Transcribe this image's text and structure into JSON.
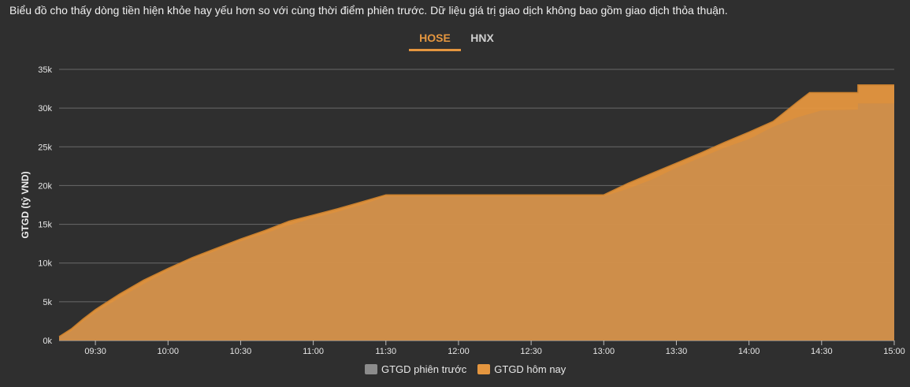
{
  "description": "Biểu đồ cho thấy dòng tiền hiện khỏe hay yếu hơn so với cùng thời điểm phiên trước. Dữ liệu giá trị giao dịch không bao gồm giao dịch thỏa thuận.",
  "tabs": [
    {
      "label": "HOSE",
      "active": true
    },
    {
      "label": "HNX",
      "active": false
    }
  ],
  "colors": {
    "background": "#2f2f2f",
    "previous": "#8c8c8c",
    "today": "#e5963f",
    "active_tab": "#e5963f"
  },
  "chart_data": {
    "type": "area",
    "ylabel": "GTGD (tỷ VND)",
    "ylim": [
      0,
      35000
    ],
    "yticks": [
      0,
      5000,
      10000,
      15000,
      20000,
      25000,
      30000,
      35000
    ],
    "ytick_labels": [
      "0k",
      "5k",
      "10k",
      "15k",
      "20k",
      "25k",
      "30k",
      "35k"
    ],
    "xlim": [
      "09:15",
      "15:00"
    ],
    "xticks": [
      "09:30",
      "10:00",
      "10:30",
      "11:00",
      "11:30",
      "12:00",
      "12:30",
      "13:00",
      "13:30",
      "14:00",
      "14:30",
      "15:00"
    ],
    "grid": true,
    "legend_position": "bottom",
    "series": [
      {
        "name": "GTGD phiên trước",
        "color": "#8c8c8c",
        "points": [
          [
            "09:15",
            400
          ],
          [
            "09:20",
            1200
          ],
          [
            "09:25",
            2500
          ],
          [
            "09:30",
            3600
          ],
          [
            "09:40",
            5500
          ],
          [
            "09:50",
            7300
          ],
          [
            "10:00",
            9000
          ],
          [
            "10:10",
            10400
          ],
          [
            "10:20",
            11600
          ],
          [
            "10:30",
            12800
          ],
          [
            "10:40",
            13800
          ],
          [
            "10:50",
            14900
          ],
          [
            "11:00",
            15800
          ],
          [
            "11:10",
            16600
          ],
          [
            "11:20",
            17500
          ],
          [
            "11:30",
            18600
          ],
          [
            "12:00",
            18600
          ],
          [
            "12:30",
            18600
          ],
          [
            "13:00",
            18600
          ],
          [
            "13:10",
            19600
          ],
          [
            "13:20",
            20800
          ],
          [
            "13:30",
            22300
          ],
          [
            "13:40",
            23600
          ],
          [
            "13:50",
            24900
          ],
          [
            "14:00",
            26000
          ],
          [
            "14:10",
            27600
          ],
          [
            "14:20",
            28800
          ],
          [
            "14:30",
            29700
          ],
          [
            "14:45",
            29800
          ],
          [
            "14:45",
            30600
          ],
          [
            "15:00",
            30600
          ]
        ]
      },
      {
        "name": "GTGD hôm nay",
        "color": "#e5963f",
        "points": [
          [
            "09:15",
            500
          ],
          [
            "09:20",
            1500
          ],
          [
            "09:25",
            2800
          ],
          [
            "09:30",
            4000
          ],
          [
            "09:40",
            6000
          ],
          [
            "09:50",
            7800
          ],
          [
            "10:00",
            9300
          ],
          [
            "10:10",
            10700
          ],
          [
            "10:20",
            11900
          ],
          [
            "10:30",
            13100
          ],
          [
            "10:40",
            14200
          ],
          [
            "10:50",
            15400
          ],
          [
            "11:00",
            16200
          ],
          [
            "11:10",
            17000
          ],
          [
            "11:20",
            17900
          ],
          [
            "11:30",
            18800
          ],
          [
            "12:00",
            18800
          ],
          [
            "12:30",
            18800
          ],
          [
            "13:00",
            18800
          ],
          [
            "13:10",
            20300
          ],
          [
            "13:20",
            21600
          ],
          [
            "13:30",
            22900
          ],
          [
            "13:40",
            24200
          ],
          [
            "13:50",
            25600
          ],
          [
            "14:00",
            26900
          ],
          [
            "14:10",
            28300
          ],
          [
            "14:20",
            30800
          ],
          [
            "14:25",
            32000
          ],
          [
            "14:45",
            32000
          ],
          [
            "14:45",
            33000
          ],
          [
            "15:00",
            33000
          ]
        ]
      }
    ]
  }
}
